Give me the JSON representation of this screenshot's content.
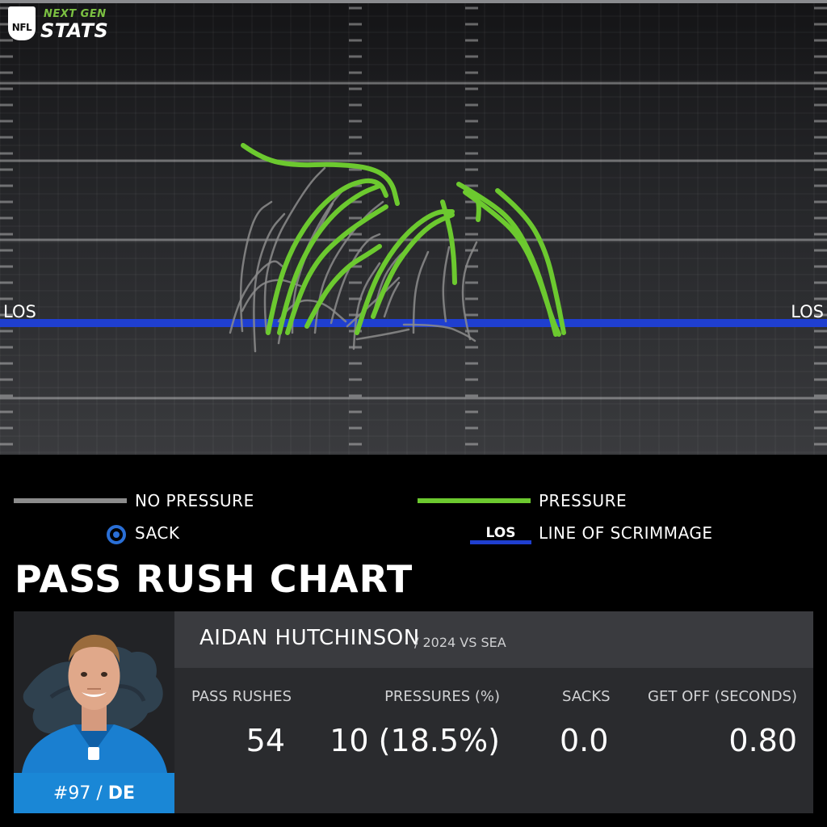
{
  "brand": {
    "league": "NFL",
    "line1": "NEXT GEN",
    "line2": "STATS"
  },
  "chart_data": {
    "type": "line",
    "title": "PASS RUSH CHART",
    "x_range": [
      0,
      1024
    ],
    "y_range": [
      0,
      563
    ],
    "los_y": 400,
    "los_label": "LOS",
    "series": [
      {
        "name": "NO PRESSURE",
        "color": "#8c8c8c",
        "paths": [
          [
            [
              300,
              410
            ],
            [
              296,
              360
            ],
            [
              305,
              300
            ],
            [
              318,
              262
            ],
            [
              336,
              250
            ]
          ],
          [
            [
              316,
              435
            ],
            [
              313,
              385
            ],
            [
              318,
              330
            ],
            [
              334,
              285
            ],
            [
              352,
              265
            ]
          ],
          [
            [
              330,
              412
            ],
            [
              325,
              360
            ],
            [
              340,
              300
            ],
            [
              362,
              260
            ],
            [
              385,
              225
            ],
            [
              402,
              208
            ]
          ],
          [
            [
              285,
              412
            ],
            [
              293,
              380
            ],
            [
              312,
              345
            ],
            [
              338,
              320
            ],
            [
              350,
              330
            ]
          ],
          [
            [
              345,
              425
            ],
            [
              352,
              380
            ],
            [
              370,
              330
            ],
            [
              388,
              290
            ],
            [
              408,
              255
            ],
            [
              425,
              235
            ]
          ],
          [
            [
              362,
              412
            ],
            [
              362,
              370
            ],
            [
              376,
              322
            ],
            [
              394,
              285
            ],
            [
              412,
              252
            ]
          ],
          [
            [
              390,
              412
            ],
            [
              394,
              370
            ],
            [
              408,
              330
            ],
            [
              430,
              295
            ],
            [
              455,
              265
            ],
            [
              474,
              250
            ]
          ],
          [
            [
              410,
              400
            ],
            [
              420,
              360
            ],
            [
              438,
              320
            ],
            [
              456,
              296
            ],
            [
              470,
              290
            ]
          ],
          [
            [
              438,
              432
            ],
            [
              440,
              392
            ],
            [
              450,
              356
            ],
            [
              470,
              326
            ]
          ],
          [
            [
              345,
              398
            ],
            [
              362,
              372
            ],
            [
              398,
              372
            ],
            [
              428,
              398
            ]
          ],
          [
            [
              300,
              385
            ],
            [
              314,
              356
            ],
            [
              344,
              344
            ],
            [
              372,
              354
            ]
          ],
          [
            [
              430,
              404
            ],
            [
              456,
              380
            ],
            [
              478,
              360
            ],
            [
              494,
              344
            ]
          ],
          [
            [
              462,
              392
            ],
            [
              470,
              352
            ],
            [
              490,
              320
            ],
            [
              512,
              302
            ]
          ],
          [
            [
              552,
              398
            ],
            [
              548,
              370
            ],
            [
              550,
              336
            ],
            [
              556,
              306
            ]
          ],
          [
            [
              582,
              420
            ],
            [
              576,
              396
            ],
            [
              572,
              362
            ],
            [
              576,
              330
            ],
            [
              590,
              300
            ]
          ],
          [
            [
              512,
              412
            ],
            [
              512,
              376
            ],
            [
              518,
              340
            ],
            [
              530,
              312
            ]
          ],
          [
            [
              500,
              402
            ],
            [
              548,
              402
            ],
            [
              576,
              414
            ],
            [
              588,
              422
            ]
          ],
          [
            [
              442,
              420
            ],
            [
              478,
              414
            ],
            [
              506,
              408
            ]
          ],
          [
            [
              476,
              392
            ],
            [
              484,
              368
            ],
            [
              494,
              350
            ]
          ]
        ]
      },
      {
        "name": "PRESSURE",
        "color": "#6cc92f",
        "paths": [
          [
            [
              301,
              180
            ],
            [
              325,
              197
            ],
            [
              365,
              205
            ],
            [
              415,
              203
            ],
            [
              462,
              208
            ],
            [
              485,
              224
            ],
            [
              492,
              252
            ]
          ],
          [
            [
              332,
              412
            ],
            [
              342,
              360
            ],
            [
              362,
              305
            ],
            [
              392,
              260
            ],
            [
              425,
              232
            ],
            [
              455,
              222
            ],
            [
              472,
              228
            ],
            [
              478,
              242
            ]
          ],
          [
            [
              346,
              412
            ],
            [
              358,
              360
            ],
            [
              382,
              305
            ],
            [
              412,
              265
            ],
            [
              445,
              240
            ],
            [
              470,
              230
            ]
          ],
          [
            [
              356,
              412
            ],
            [
              370,
              365
            ],
            [
              394,
              320
            ],
            [
              426,
              290
            ],
            [
              455,
              270
            ],
            [
              478,
              256
            ]
          ],
          [
            [
              380,
              404
            ],
            [
              400,
              364
            ],
            [
              430,
              330
            ],
            [
              455,
              315
            ],
            [
              470,
              305
            ]
          ],
          [
            [
              442,
              412
            ],
            [
              458,
              360
            ],
            [
              482,
              315
            ],
            [
              510,
              282
            ],
            [
              540,
              262
            ],
            [
              560,
              262
            ]
          ],
          [
            [
              462,
              392
            ],
            [
              480,
              345
            ],
            [
              506,
              305
            ],
            [
              533,
              278
            ],
            [
              560,
              266
            ]
          ],
          [
            [
              548,
              250
            ],
            [
              557,
              280
            ],
            [
              562,
              318
            ],
            [
              563,
              350
            ]
          ],
          [
            [
              568,
              228
            ],
            [
              603,
              248
            ],
            [
              636,
              275
            ],
            [
              660,
              320
            ],
            [
              676,
              368
            ],
            [
              688,
              414
            ]
          ],
          [
            [
              576,
              238
            ],
            [
              610,
              262
            ],
            [
              644,
              294
            ],
            [
              666,
              340
            ],
            [
              684,
              396
            ],
            [
              692,
              414
            ]
          ],
          [
            [
              616,
              236
            ],
            [
              650,
              264
            ],
            [
              676,
              310
            ],
            [
              690,
              370
            ],
            [
              698,
              412
            ]
          ],
          [
            [
              592,
              272
            ],
            [
              594,
              254
            ],
            [
              588,
              240
            ]
          ]
        ]
      }
    ],
    "legend": [
      {
        "label": "NO PRESSURE",
        "color": "#8c8c8c",
        "type": "line"
      },
      {
        "label": "PRESSURE",
        "color": "#6cc92f",
        "type": "line"
      },
      {
        "label": "SACK",
        "color": "#2a6fd6",
        "type": "marker"
      },
      {
        "label": "LINE OF SCRIMMAGE",
        "key_text": "LOS",
        "color": "#1f3fd0",
        "type": "line"
      }
    ]
  },
  "player": {
    "name": "AIDAN HUTCHINSON",
    "sub": "/ 2024 VS SEA",
    "number": "#97",
    "separator": "/",
    "position": "DE",
    "team_color": "#1a87d6"
  },
  "stats": [
    {
      "label": "PASS RUSHES",
      "value": "54"
    },
    {
      "label": "PRESSURES (%)",
      "value": "10 (18.5%)"
    },
    {
      "label": "SACKS",
      "value": "0.0"
    },
    {
      "label": "GET OFF (SECONDS)",
      "value": "0.80"
    }
  ]
}
